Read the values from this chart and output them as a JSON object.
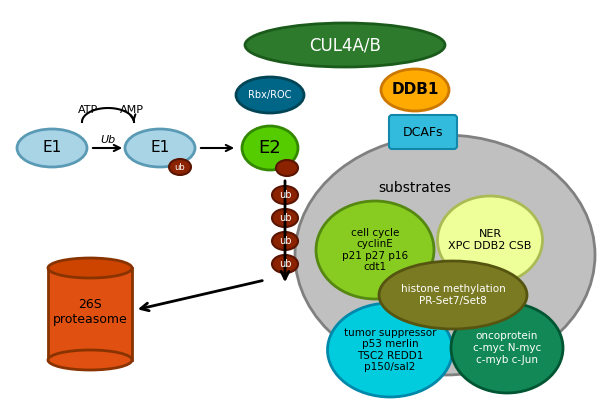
{
  "colors": {
    "e1_fill": "#a8d4e6",
    "e1_edge": "#5a9ab5",
    "e2_fill": "#55cc00",
    "e2_edge": "#338800",
    "rbx_fill": "#006688",
    "rbx_edge": "#004455",
    "cul4_fill": "#2d7a2d",
    "cul4_edge": "#1a5a1a",
    "ddb1_fill": "#ffaa00",
    "ddb1_edge": "#cc7700",
    "dcafs_fill": "#33bbdd",
    "dcafs_edge": "#1188aa",
    "ub_fill": "#8b2200",
    "ub_edge": "#5a1500",
    "sub_ellipse_fill": "#c0c0c0",
    "sub_ellipse_edge": "#808080",
    "cell_cycle_fill": "#88cc22",
    "cell_cycle_edge": "#558811",
    "ner_fill": "#eeff99",
    "ner_edge": "#aabb55",
    "histone_fill": "#7a7a22",
    "histone_edge": "#555511",
    "tumor_fill": "#00ccdd",
    "tumor_edge": "#0088aa",
    "onco_fill": "#118855",
    "onco_edge": "#005533",
    "proto_fill": "#e05010",
    "proto_fill2": "#cc4400",
    "proto_edge": "#883300",
    "bg": "#ffffff",
    "black": "#000000",
    "white": "#ffffff"
  },
  "labels": {
    "e1": "E1",
    "e2": "E2",
    "ub": "ub",
    "Ub": "Ub",
    "rbx": "Rbx/ROC",
    "cul4": "CUL4A/B",
    "ddb1": "DDB1",
    "dcafs": "DCAFs",
    "atp": "ATP",
    "amp": "AMP",
    "substrates": "substrates",
    "cell_cycle": "cell cycle\ncyclinE\np21 p27 p16\ncdt1",
    "ner": "NER\nXPC DDB2 CSB",
    "histone": "histone methylation\nPR-Set7/Set8",
    "tumor": "tumor suppressor\np53 merlin\nTSC2 REDD1\np150/sal2",
    "onco": "oncoprotein\nc-myc N-myc\nc-myb c-Jun",
    "proto": "26S\nproteasome"
  }
}
